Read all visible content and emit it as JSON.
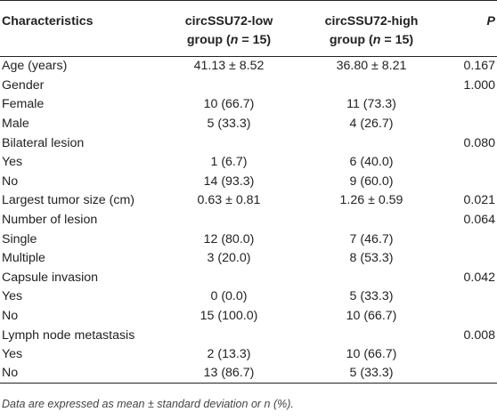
{
  "table": {
    "headers": {
      "characteristics": "Characteristics",
      "low_line1": "circSSU72-low",
      "low_line2": "group (n = 15)",
      "high_line1": "circSSU72-high",
      "high_line2": "group (n = 15)",
      "p": "P"
    },
    "rows": [
      {
        "label": "Age (years)",
        "low": "41.13 ± 8.52",
        "high": "36.80 ± 8.21",
        "p": "0.167"
      },
      {
        "label": "Gender",
        "low": "",
        "high": "",
        "p": "1.000"
      },
      {
        "label": "Female",
        "low": "10 (66.7)",
        "high": "11 (73.3)",
        "p": ""
      },
      {
        "label": "Male",
        "low": "5 (33.3)",
        "high": "4 (26.7)",
        "p": ""
      },
      {
        "label": "Bilateral lesion",
        "low": "",
        "high": "",
        "p": "0.080"
      },
      {
        "label": "Yes",
        "low": "1 (6.7)",
        "high": "6 (40.0)",
        "p": ""
      },
      {
        "label": "No",
        "low": "14 (93.3)",
        "high": "9 (60.0)",
        "p": ""
      },
      {
        "label": "Largest tumor size (cm)",
        "low": "0.63 ± 0.81",
        "high": "1.26 ± 0.59",
        "p": "0.021"
      },
      {
        "label": "Number of lesion",
        "low": "",
        "high": "",
        "p": "0.064"
      },
      {
        "label": "Single",
        "low": "12 (80.0)",
        "high": "7 (46.7)",
        "p": ""
      },
      {
        "label": "Multiple",
        "low": "3 (20.0)",
        "high": "8 (53.3)",
        "p": ""
      },
      {
        "label": "Capsule invasion",
        "low": "",
        "high": "",
        "p": "0.042"
      },
      {
        "label": "Yes",
        "low": "0 (0.0)",
        "high": "5 (33.3)",
        "p": ""
      },
      {
        "label": "No",
        "low": "15 (100.0)",
        "high": "10 (66.7)",
        "p": ""
      },
      {
        "label": "Lymph node metastasis",
        "low": "",
        "high": "",
        "p": "0.008"
      },
      {
        "label": "Yes",
        "low": "2 (13.3)",
        "high": "10 (66.7)",
        "p": ""
      },
      {
        "label": "No",
        "low": "13 (86.7)",
        "high": "5 (33.3)",
        "p": ""
      }
    ]
  },
  "footnote": "Data are expressed as mean ± standard deviation or n (%)."
}
